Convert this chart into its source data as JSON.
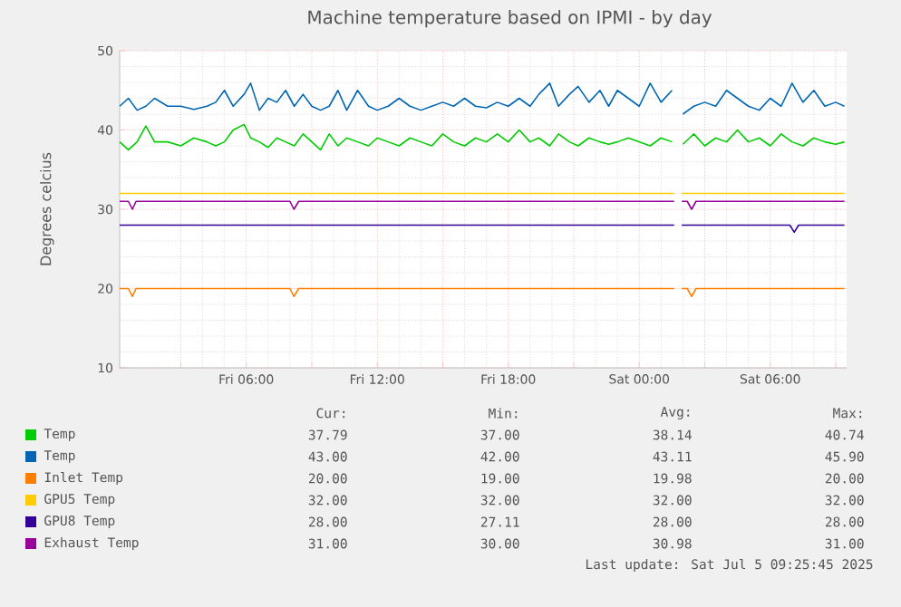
{
  "chart_data": {
    "type": "line",
    "title": "Machine temperature based on IPMI - by day",
    "ylabel": "Degrees celcius",
    "x": [
      "2025-07-04T00:12",
      "2025-07-04T00:36",
      "2025-07-04T01:00",
      "2025-07-04T01:24",
      "2025-07-04T01:48",
      "2025-07-04T02:24",
      "2025-07-04T03:00",
      "2025-07-04T03:36",
      "2025-07-04T04:12",
      "2025-07-04T04:36",
      "2025-07-04T05:00",
      "2025-07-04T05:24",
      "2025-07-04T05:54",
      "2025-07-04T06:12",
      "2025-07-04T06:36",
      "2025-07-04T07:00",
      "2025-07-04T07:24",
      "2025-07-04T07:48",
      "2025-07-04T08:12",
      "2025-07-04T08:36",
      "2025-07-04T09:00",
      "2025-07-04T09:24",
      "2025-07-04T09:48",
      "2025-07-04T10:12",
      "2025-07-04T10:36",
      "2025-07-04T11:06",
      "2025-07-04T11:36",
      "2025-07-04T12:00",
      "2025-07-04T12:30",
      "2025-07-04T13:00",
      "2025-07-04T13:30",
      "2025-07-04T14:00",
      "2025-07-04T14:30",
      "2025-07-04T15:00",
      "2025-07-04T15:30",
      "2025-07-04T16:00",
      "2025-07-04T16:30",
      "2025-07-04T17:00",
      "2025-07-04T17:30",
      "2025-07-04T18:00",
      "2025-07-04T18:30",
      "2025-07-04T19:00",
      "2025-07-04T19:24",
      "2025-07-04T19:54",
      "2025-07-04T20:18",
      "2025-07-04T20:48",
      "2025-07-04T21:12",
      "2025-07-04T21:42",
      "2025-07-04T22:12",
      "2025-07-04T22:36",
      "2025-07-04T23:00",
      "2025-07-04T23:30",
      "2025-07-05T00:00",
      "2025-07-05T00:30",
      "2025-07-05T01:00",
      "2025-07-05T01:30",
      "2025-07-05T01:45",
      "2025-07-05T02:00",
      "2025-07-05T02:30",
      "2025-07-05T03:00",
      "2025-07-05T03:30",
      "2025-07-05T04:00",
      "2025-07-05T04:30",
      "2025-07-05T05:00",
      "2025-07-05T05:30",
      "2025-07-05T06:00",
      "2025-07-05T06:30",
      "2025-07-05T07:00",
      "2025-07-05T07:30",
      "2025-07-05T08:00",
      "2025-07-05T08:30",
      "2025-07-05T09:00",
      "2025-07-05T09:24"
    ],
    "series": [
      {
        "name": "Temp",
        "color": "#00cc00",
        "values": [
          38.5,
          37.5,
          38.5,
          40.5,
          38.5,
          38.5,
          38,
          39,
          38.5,
          38,
          38.5,
          40,
          40.7,
          39,
          38.5,
          37.8,
          39,
          38.5,
          38,
          39.5,
          38.5,
          37.5,
          39.5,
          38,
          39,
          38.5,
          38,
          39,
          38.5,
          38,
          39,
          38.5,
          38,
          39.5,
          38.5,
          38,
          39,
          38.5,
          39.5,
          38.5,
          40,
          38.5,
          39,
          38,
          39.5,
          38.5,
          38,
          39,
          38.5,
          38.2,
          38.5,
          39,
          38.5,
          38,
          39,
          38.5,
          null,
          38.2,
          39.5,
          38,
          39,
          38.5,
          40,
          38.5,
          39,
          38,
          39.5,
          38.5,
          38,
          39,
          38.5,
          38.2,
          38.5
        ]
      },
      {
        "name": "Temp",
        "color": "#0066b3",
        "values": [
          43,
          44,
          42.5,
          43,
          44,
          43,
          43,
          42.6,
          43,
          43.5,
          45,
          43,
          44.5,
          45.9,
          42.5,
          44,
          43.5,
          45,
          43,
          44.5,
          43,
          42.5,
          43,
          45,
          42.5,
          45,
          43,
          42.5,
          43,
          44,
          43,
          42.5,
          43,
          43.5,
          43,
          44,
          43,
          42.8,
          43.5,
          43,
          44,
          43,
          44.5,
          45.9,
          43,
          44.5,
          45.5,
          43.5,
          45,
          43,
          45,
          44,
          43,
          45.9,
          43.5,
          45,
          null,
          42,
          43,
          43.5,
          43,
          45,
          44,
          43,
          42.5,
          44,
          43,
          45.9,
          43.5,
          45,
          43,
          43.5,
          43
        ]
      },
      {
        "name": "Inlet Temp",
        "color": "#ff8000",
        "x": [
          "2025-07-04T00:12",
          "2025-07-04T00:36",
          "2025-07-04T00:47",
          "2025-07-04T00:57",
          "2025-07-04T08:00",
          "2025-07-04T08:11",
          "2025-07-04T08:24",
          "2025-07-05T01:36",
          "2025-07-05T01:45",
          "2025-07-05T01:57",
          "2025-07-05T02:12",
          "2025-07-05T02:24",
          "2025-07-05T02:36",
          "2025-07-05T09:24"
        ],
        "values": [
          20,
          20,
          19,
          20,
          20,
          19,
          20,
          20,
          null,
          20,
          20,
          19,
          20,
          20
        ]
      },
      {
        "name": "GPU5 Temp",
        "color": "#ffcc00",
        "x": [
          "2025-07-04T00:12",
          "2025-07-05T01:36",
          "2025-07-05T01:45",
          "2025-07-05T01:57",
          "2025-07-05T09:24"
        ],
        "values": [
          32,
          32,
          null,
          32,
          32
        ]
      },
      {
        "name": "GPU8 Temp",
        "color": "#330099",
        "x": [
          "2025-07-04T00:12",
          "2025-07-05T01:36",
          "2025-07-05T01:45",
          "2025-07-05T01:57",
          "2025-07-05T06:54",
          "2025-07-05T07:06",
          "2025-07-05T07:18",
          "2025-07-05T09:24"
        ],
        "values": [
          28,
          28,
          null,
          28,
          28,
          27.1,
          28,
          28
        ]
      },
      {
        "name": "Exhaust Temp",
        "color": "#990099",
        "x": [
          "2025-07-04T00:12",
          "2025-07-04T00:36",
          "2025-07-04T00:47",
          "2025-07-04T00:57",
          "2025-07-04T08:00",
          "2025-07-04T08:11",
          "2025-07-04T08:24",
          "2025-07-05T01:36",
          "2025-07-05T01:45",
          "2025-07-05T01:57",
          "2025-07-05T02:12",
          "2025-07-05T02:24",
          "2025-07-05T02:36",
          "2025-07-05T09:24"
        ],
        "values": [
          31,
          31,
          30,
          31,
          31,
          30,
          31,
          31,
          null,
          31,
          31,
          30,
          31,
          31
        ]
      }
    ],
    "xlim": [
      "2025-07-04T00:12",
      "2025-07-05T09:30"
    ],
    "xticks": [
      {
        "value": "2025-07-04T03:00",
        "label": null
      },
      {
        "value": "2025-07-04T06:00",
        "label": "Fri 06:00"
      },
      {
        "value": "2025-07-04T09:00",
        "label": null
      },
      {
        "value": "2025-07-04T12:00",
        "label": "Fri 12:00"
      },
      {
        "value": "2025-07-04T15:00",
        "label": null
      },
      {
        "value": "2025-07-04T18:00",
        "label": "Fri 18:00"
      },
      {
        "value": "2025-07-04T21:00",
        "label": null
      },
      {
        "value": "2025-07-05T00:00",
        "label": "Sat 00:00"
      },
      {
        "value": "2025-07-05T03:00",
        "label": null
      },
      {
        "value": "2025-07-05T06:00",
        "label": "Sat 06:00"
      },
      {
        "value": "2025-07-05T09:00",
        "label": null
      }
    ],
    "ylim": [
      10,
      50
    ],
    "yticks": [
      10,
      20,
      30,
      40,
      50
    ],
    "grid": true,
    "legend": "bottom",
    "marker": "none",
    "line_style": "solid",
    "annotations": [
      "Cur:",
      "Min:",
      "Avg:",
      "Max:",
      "37.79",
      "37.00",
      "38.14",
      "40.74",
      "43.00",
      "42.00",
      "43.11",
      "45.90",
      "20.00",
      "19.00",
      "19.98",
      "20.00",
      "32.00",
      "32.00",
      "32.00",
      "32.00",
      "28.00",
      "27.11",
      "28.00",
      "28.00",
      "31.00",
      "30.00",
      "30.98",
      "31.00",
      "Last update: Sat Jul  5 09:25:45 2025"
    ]
  }
}
